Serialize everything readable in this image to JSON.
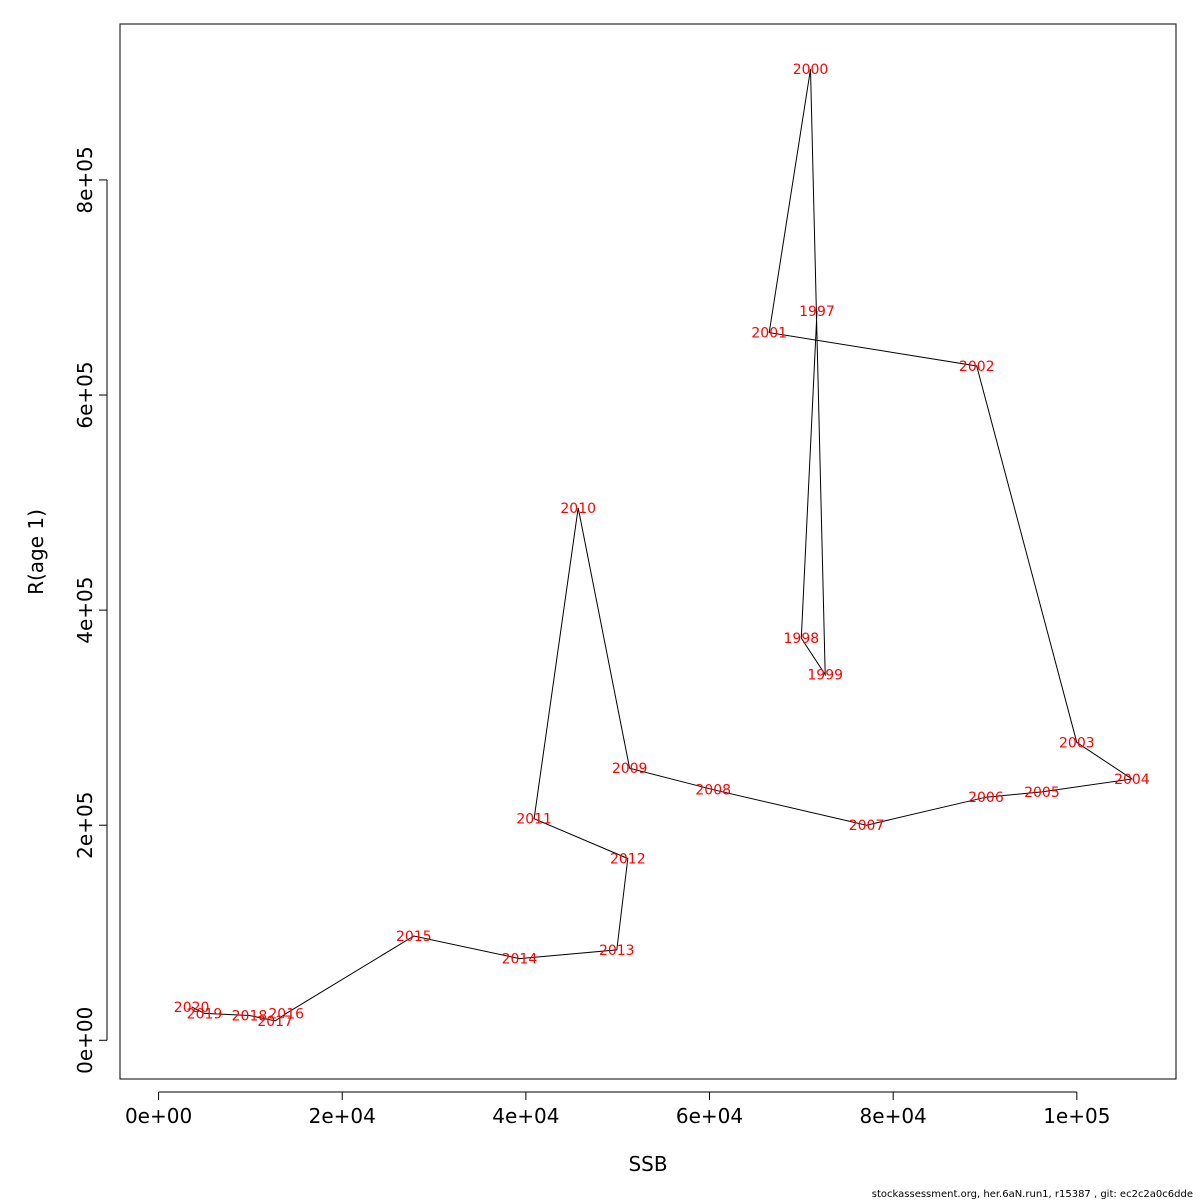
{
  "chart_data": {
    "type": "line",
    "xlabel": "SSB",
    "ylabel": "R(age 1)",
    "xlim": [
      -4200,
      110800
    ],
    "ylim": [
      -36000,
      945000
    ],
    "x_ticks": [
      0,
      20000,
      40000,
      60000,
      80000,
      100000
    ],
    "x_tick_labels": [
      "0e+00",
      "2e+04",
      "4e+04",
      "6e+04",
      "8e+04",
      "1e+05"
    ],
    "y_ticks": [
      0,
      200000,
      400000,
      600000,
      800000
    ],
    "y_tick_labels": [
      "0e+00",
      "2e+05",
      "4e+05",
      "6e+05",
      "8e+05"
    ],
    "grid": false,
    "line_color": "#000000",
    "label_color": "#ff0000",
    "points": [
      {
        "year": "1997",
        "x": 71700,
        "y": 678000
      },
      {
        "year": "1998",
        "x": 70000,
        "y": 374000
      },
      {
        "year": "1999",
        "x": 72600,
        "y": 340000
      },
      {
        "year": "2000",
        "x": 71000,
        "y": 903000
      },
      {
        "year": "2001",
        "x": 66500,
        "y": 658000
      },
      {
        "year": "2002",
        "x": 89100,
        "y": 627000
      },
      {
        "year": "2003",
        "x": 100000,
        "y": 277000
      },
      {
        "year": "2004",
        "x": 106000,
        "y": 243000
      },
      {
        "year": "2005",
        "x": 96200,
        "y": 231000
      },
      {
        "year": "2006",
        "x": 90100,
        "y": 226000
      },
      {
        "year": "2007",
        "x": 77100,
        "y": 200000
      },
      {
        "year": "2008",
        "x": 60400,
        "y": 233000
      },
      {
        "year": "2009",
        "x": 51300,
        "y": 253000
      },
      {
        "year": "2010",
        "x": 45700,
        "y": 495000
      },
      {
        "year": "2011",
        "x": 40900,
        "y": 206000
      },
      {
        "year": "2012",
        "x": 51100,
        "y": 169000
      },
      {
        "year": "2013",
        "x": 49900,
        "y": 84000
      },
      {
        "year": "2014",
        "x": 39300,
        "y": 76000
      },
      {
        "year": "2015",
        "x": 27800,
        "y": 97000
      },
      {
        "year": "2016",
        "x": 13900,
        "y": 25000
      },
      {
        "year": "2017",
        "x": 12700,
        "y": 18000
      },
      {
        "year": "2018",
        "x": 9900,
        "y": 23000
      },
      {
        "year": "2019",
        "x": 5000,
        "y": 25000
      },
      {
        "year": "2020",
        "x": 3600,
        "y": 31000
      }
    ]
  },
  "footer": "stockassessment.org, her.6aN.run1, r15387 , git: ec2c2a0c6dde"
}
